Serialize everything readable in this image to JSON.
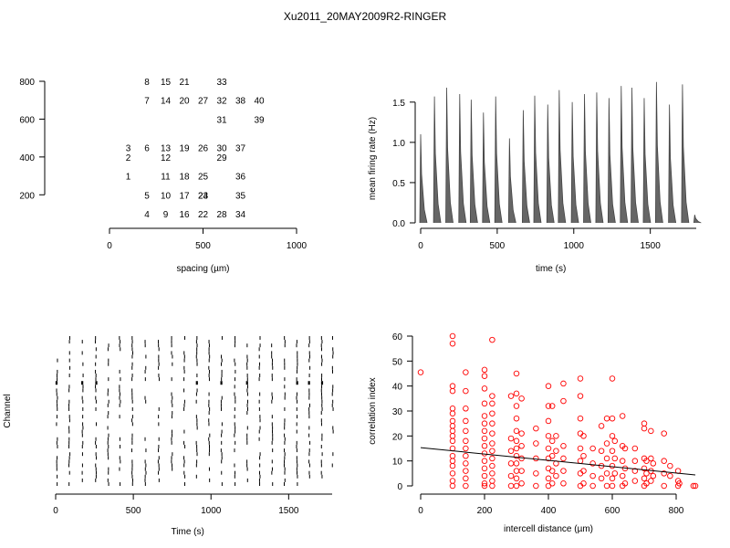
{
  "figure_title": "Xu2011_20MAY2009R2-RINGER",
  "chart_data": [
    {
      "type": "scatter",
      "panel": "electrode-layout",
      "xlabel": "spacing (µm)",
      "ylabel": "",
      "xlim": [
        0,
        1000
      ],
      "ylim": [
        0,
        800
      ],
      "x_ticks": [
        0,
        500,
        1000
      ],
      "y_ticks": [
        200,
        400,
        600,
        800
      ],
      "points": [
        {
          "label": "1",
          "x": 100,
          "y": 300
        },
        {
          "label": "2",
          "x": 100,
          "y": 400
        },
        {
          "label": "3",
          "x": 100,
          "y": 450
        },
        {
          "label": "4",
          "x": 200,
          "y": 100
        },
        {
          "label": "5",
          "x": 200,
          "y": 200
        },
        {
          "label": "6",
          "x": 200,
          "y": 450
        },
        {
          "label": "7",
          "x": 200,
          "y": 700
        },
        {
          "label": "8",
          "x": 200,
          "y": 800
        },
        {
          "label": "9",
          "x": 300,
          "y": 100
        },
        {
          "label": "10",
          "x": 300,
          "y": 200
        },
        {
          "label": "11",
          "x": 300,
          "y": 300
        },
        {
          "label": "12",
          "x": 300,
          "y": 400
        },
        {
          "label": "13",
          "x": 300,
          "y": 450
        },
        {
          "label": "14",
          "x": 300,
          "y": 700
        },
        {
          "label": "15",
          "x": 300,
          "y": 800
        },
        {
          "label": "16",
          "x": 400,
          "y": 100
        },
        {
          "label": "17",
          "x": 400,
          "y": 200
        },
        {
          "label": "18",
          "x": 400,
          "y": 300
        },
        {
          "label": "19",
          "x": 400,
          "y": 450
        },
        {
          "label": "20",
          "x": 400,
          "y": 700
        },
        {
          "label": "21",
          "x": 400,
          "y": 800
        },
        {
          "label": "22",
          "x": 500,
          "y": 100
        },
        {
          "label": "23",
          "x": 500,
          "y": 200
        },
        {
          "label": "24",
          "x": 500,
          "y": 200
        },
        {
          "label": "25",
          "x": 500,
          "y": 300
        },
        {
          "label": "26",
          "x": 500,
          "y": 450
        },
        {
          "label": "27",
          "x": 500,
          "y": 700
        },
        {
          "label": "28",
          "x": 600,
          "y": 100
        },
        {
          "label": "29",
          "x": 600,
          "y": 400
        },
        {
          "label": "30",
          "x": 600,
          "y": 450
        },
        {
          "label": "31",
          "x": 600,
          "y": 600
        },
        {
          "label": "32",
          "x": 600,
          "y": 700
        },
        {
          "label": "33",
          "x": 600,
          "y": 800
        },
        {
          "label": "34",
          "x": 700,
          "y": 100
        },
        {
          "label": "35",
          "x": 700,
          "y": 200
        },
        {
          "label": "36",
          "x": 700,
          "y": 300
        },
        {
          "label": "37",
          "x": 700,
          "y": 450
        },
        {
          "label": "38",
          "x": 700,
          "y": 700
        },
        {
          "label": "39",
          "x": 800,
          "y": 600
        },
        {
          "label": "40",
          "x": 800,
          "y": 700
        }
      ]
    },
    {
      "type": "line",
      "panel": "mean-firing-rate",
      "xlabel": "time (s)",
      "ylabel": "mean firing rate (Hz)",
      "xlim": [
        0,
        1800
      ],
      "ylim": [
        0,
        1.6
      ],
      "x_ticks": [
        0,
        500,
        1000,
        1500
      ],
      "y_ticks": [
        "0.0",
        "0.5",
        "1.0",
        "1.5"
      ],
      "bursts": [
        {
          "t": 0,
          "peak": 1.1
        },
        {
          "t": 90,
          "peak": 1.57
        },
        {
          "t": 170,
          "peak": 1.68
        },
        {
          "t": 255,
          "peak": 1.6
        },
        {
          "t": 330,
          "peak": 1.53
        },
        {
          "t": 410,
          "peak": 1.37
        },
        {
          "t": 490,
          "peak": 1.57
        },
        {
          "t": 580,
          "peak": 1.05
        },
        {
          "t": 670,
          "peak": 1.4
        },
        {
          "t": 745,
          "peak": 1.58
        },
        {
          "t": 830,
          "peak": 1.47
        },
        {
          "t": 905,
          "peak": 1.65
        },
        {
          "t": 990,
          "peak": 1.5
        },
        {
          "t": 1070,
          "peak": 1.6
        },
        {
          "t": 1150,
          "peak": 1.62
        },
        {
          "t": 1230,
          "peak": 1.55
        },
        {
          "t": 1310,
          "peak": 1.7
        },
        {
          "t": 1380,
          "peak": 1.68
        },
        {
          "t": 1460,
          "peak": 1.55
        },
        {
          "t": 1540,
          "peak": 1.75
        },
        {
          "t": 1625,
          "peak": 1.47
        },
        {
          "t": 1710,
          "peak": 1.72
        },
        {
          "t": 1790,
          "peak": 0.1
        }
      ]
    },
    {
      "type": "raster",
      "panel": "spike-raster",
      "xlabel": "Time (s)",
      "ylabel": "Channel",
      "xlim": [
        0,
        1780
      ],
      "x_ticks": [
        0,
        500,
        1000,
        1500
      ],
      "channels": 40,
      "burst_times": [
        0,
        80,
        165,
        250,
        330,
        405,
        485,
        570,
        655,
        740,
        820,
        900,
        980,
        1060,
        1145,
        1225,
        1305,
        1385,
        1465,
        1545,
        1625,
        1705,
        1775
      ]
    },
    {
      "type": "scatter",
      "panel": "correlation-vs-distance",
      "xlabel": "intercell distance (µm)",
      "ylabel": "correlation index",
      "xlim": [
        0,
        860
      ],
      "ylim": [
        0,
        60
      ],
      "x_ticks": [
        0,
        200,
        400,
        600,
        800
      ],
      "y_ticks": [
        0,
        10,
        20,
        30,
        40,
        50,
        60
      ],
      "colors": {
        "points": "#ff0000",
        "fit": "#000000"
      },
      "fit_line": {
        "x": [
          0,
          860
        ],
        "y": [
          15.3,
          4.4
        ]
      },
      "points": [
        {
          "x": 0,
          "y": 45.5
        },
        {
          "x": 100,
          "y": 60
        },
        {
          "x": 100,
          "y": 57
        },
        {
          "x": 100,
          "y": 40
        },
        {
          "x": 100,
          "y": 38
        },
        {
          "x": 100,
          "y": 31
        },
        {
          "x": 100,
          "y": 29
        },
        {
          "x": 100,
          "y": 26
        },
        {
          "x": 100,
          "y": 24
        },
        {
          "x": 100,
          "y": 22
        },
        {
          "x": 100,
          "y": 20
        },
        {
          "x": 100,
          "y": 18
        },
        {
          "x": 100,
          "y": 15
        },
        {
          "x": 100,
          "y": 12
        },
        {
          "x": 100,
          "y": 10
        },
        {
          "x": 100,
          "y": 8
        },
        {
          "x": 100,
          "y": 5
        },
        {
          "x": 100,
          "y": 2
        },
        {
          "x": 100,
          "y": 0
        },
        {
          "x": 141,
          "y": 45.5
        },
        {
          "x": 141,
          "y": 38
        },
        {
          "x": 141,
          "y": 31
        },
        {
          "x": 141,
          "y": 26
        },
        {
          "x": 141,
          "y": 22
        },
        {
          "x": 141,
          "y": 18
        },
        {
          "x": 141,
          "y": 15
        },
        {
          "x": 141,
          "y": 12
        },
        {
          "x": 141,
          "y": 9
        },
        {
          "x": 141,
          "y": 6
        },
        {
          "x": 141,
          "y": 3
        },
        {
          "x": 141,
          "y": 0
        },
        {
          "x": 200,
          "y": 46.5
        },
        {
          "x": 200,
          "y": 44
        },
        {
          "x": 200,
          "y": 39
        },
        {
          "x": 200,
          "y": 33
        },
        {
          "x": 200,
          "y": 28
        },
        {
          "x": 200,
          "y": 25
        },
        {
          "x": 200,
          "y": 22
        },
        {
          "x": 200,
          "y": 19
        },
        {
          "x": 200,
          "y": 16
        },
        {
          "x": 200,
          "y": 13
        },
        {
          "x": 200,
          "y": 10
        },
        {
          "x": 200,
          "y": 7
        },
        {
          "x": 200,
          "y": 4
        },
        {
          "x": 200,
          "y": 1
        },
        {
          "x": 200,
          "y": 0
        },
        {
          "x": 224,
          "y": 58.5
        },
        {
          "x": 224,
          "y": 36
        },
        {
          "x": 224,
          "y": 33
        },
        {
          "x": 224,
          "y": 29
        },
        {
          "x": 224,
          "y": 25
        },
        {
          "x": 224,
          "y": 21
        },
        {
          "x": 224,
          "y": 17
        },
        {
          "x": 224,
          "y": 14
        },
        {
          "x": 224,
          "y": 11
        },
        {
          "x": 224,
          "y": 8
        },
        {
          "x": 224,
          "y": 5
        },
        {
          "x": 224,
          "y": 2
        },
        {
          "x": 224,
          "y": 0
        },
        {
          "x": 283,
          "y": 36
        },
        {
          "x": 283,
          "y": 19
        },
        {
          "x": 283,
          "y": 14
        },
        {
          "x": 283,
          "y": 9
        },
        {
          "x": 283,
          "y": 4
        },
        {
          "x": 283,
          "y": 0
        },
        {
          "x": 300,
          "y": 45
        },
        {
          "x": 300,
          "y": 37
        },
        {
          "x": 300,
          "y": 32
        },
        {
          "x": 300,
          "y": 27
        },
        {
          "x": 300,
          "y": 22
        },
        {
          "x": 300,
          "y": 18
        },
        {
          "x": 300,
          "y": 15
        },
        {
          "x": 300,
          "y": 12
        },
        {
          "x": 300,
          "y": 9
        },
        {
          "x": 300,
          "y": 6
        },
        {
          "x": 300,
          "y": 3
        },
        {
          "x": 300,
          "y": 0
        },
        {
          "x": 316,
          "y": 35
        },
        {
          "x": 316,
          "y": 21
        },
        {
          "x": 316,
          "y": 16
        },
        {
          "x": 316,
          "y": 11
        },
        {
          "x": 316,
          "y": 6
        },
        {
          "x": 316,
          "y": 1
        },
        {
          "x": 361,
          "y": 23
        },
        {
          "x": 361,
          "y": 17
        },
        {
          "x": 361,
          "y": 11
        },
        {
          "x": 361,
          "y": 5
        },
        {
          "x": 361,
          "y": 0
        },
        {
          "x": 400,
          "y": 40
        },
        {
          "x": 400,
          "y": 32
        },
        {
          "x": 400,
          "y": 26
        },
        {
          "x": 400,
          "y": 20
        },
        {
          "x": 400,
          "y": 15
        },
        {
          "x": 400,
          "y": 11
        },
        {
          "x": 400,
          "y": 7
        },
        {
          "x": 400,
          "y": 3
        },
        {
          "x": 400,
          "y": 0
        },
        {
          "x": 412,
          "y": 32
        },
        {
          "x": 412,
          "y": 18
        },
        {
          "x": 412,
          "y": 12
        },
        {
          "x": 412,
          "y": 6
        },
        {
          "x": 412,
          "y": 1
        },
        {
          "x": 424,
          "y": 20
        },
        {
          "x": 424,
          "y": 14
        },
        {
          "x": 424,
          "y": 9
        },
        {
          "x": 424,
          "y": 4
        },
        {
          "x": 447,
          "y": 41
        },
        {
          "x": 447,
          "y": 34
        },
        {
          "x": 447,
          "y": 16
        },
        {
          "x": 447,
          "y": 11
        },
        {
          "x": 447,
          "y": 6
        },
        {
          "x": 447,
          "y": 1
        },
        {
          "x": 500,
          "y": 43
        },
        {
          "x": 500,
          "y": 36
        },
        {
          "x": 500,
          "y": 27
        },
        {
          "x": 500,
          "y": 21
        },
        {
          "x": 500,
          "y": 15
        },
        {
          "x": 500,
          "y": 10
        },
        {
          "x": 500,
          "y": 5
        },
        {
          "x": 500,
          "y": 0
        },
        {
          "x": 510,
          "y": 20
        },
        {
          "x": 510,
          "y": 12
        },
        {
          "x": 510,
          "y": 6
        },
        {
          "x": 510,
          "y": 1
        },
        {
          "x": 539,
          "y": 15
        },
        {
          "x": 539,
          "y": 9
        },
        {
          "x": 539,
          "y": 4
        },
        {
          "x": 539,
          "y": 0
        },
        {
          "x": 566,
          "y": 24
        },
        {
          "x": 566,
          "y": 14
        },
        {
          "x": 566,
          "y": 8
        },
        {
          "x": 566,
          "y": 3
        },
        {
          "x": 583,
          "y": 27
        },
        {
          "x": 583,
          "y": 17
        },
        {
          "x": 583,
          "y": 11
        },
        {
          "x": 583,
          "y": 5
        },
        {
          "x": 583,
          "y": 0
        },
        {
          "x": 600,
          "y": 43
        },
        {
          "x": 600,
          "y": 27
        },
        {
          "x": 600,
          "y": 20
        },
        {
          "x": 600,
          "y": 14
        },
        {
          "x": 600,
          "y": 8
        },
        {
          "x": 600,
          "y": 3
        },
        {
          "x": 600,
          "y": 0
        },
        {
          "x": 608,
          "y": 18
        },
        {
          "x": 608,
          "y": 11
        },
        {
          "x": 608,
          "y": 5
        },
        {
          "x": 632,
          "y": 28
        },
        {
          "x": 632,
          "y": 16
        },
        {
          "x": 632,
          "y": 10
        },
        {
          "x": 632,
          "y": 4
        },
        {
          "x": 632,
          "y": 0
        },
        {
          "x": 640,
          "y": 15
        },
        {
          "x": 640,
          "y": 7
        },
        {
          "x": 640,
          "y": 1
        },
        {
          "x": 671,
          "y": 15
        },
        {
          "x": 671,
          "y": 10
        },
        {
          "x": 671,
          "y": 6
        },
        {
          "x": 671,
          "y": 2
        },
        {
          "x": 700,
          "y": 25
        },
        {
          "x": 700,
          "y": 23
        },
        {
          "x": 700,
          "y": 11
        },
        {
          "x": 700,
          "y": 7
        },
        {
          "x": 700,
          "y": 3
        },
        {
          "x": 700,
          "y": 0
        },
        {
          "x": 707,
          "y": 10
        },
        {
          "x": 707,
          "y": 5
        },
        {
          "x": 707,
          "y": 1
        },
        {
          "x": 721,
          "y": 22
        },
        {
          "x": 721,
          "y": 11
        },
        {
          "x": 721,
          "y": 6
        },
        {
          "x": 721,
          "y": 2
        },
        {
          "x": 728,
          "y": 9
        },
        {
          "x": 728,
          "y": 4
        },
        {
          "x": 762,
          "y": 21
        },
        {
          "x": 762,
          "y": 10
        },
        {
          "x": 762,
          "y": 5
        },
        {
          "x": 762,
          "y": 0
        },
        {
          "x": 781,
          "y": 8
        },
        {
          "x": 781,
          "y": 4
        },
        {
          "x": 806,
          "y": 6
        },
        {
          "x": 806,
          "y": 2
        },
        {
          "x": 806,
          "y": 0
        },
        {
          "x": 810,
          "y": 1
        },
        {
          "x": 854,
          "y": 0
        },
        {
          "x": 860,
          "y": 0
        }
      ]
    }
  ]
}
